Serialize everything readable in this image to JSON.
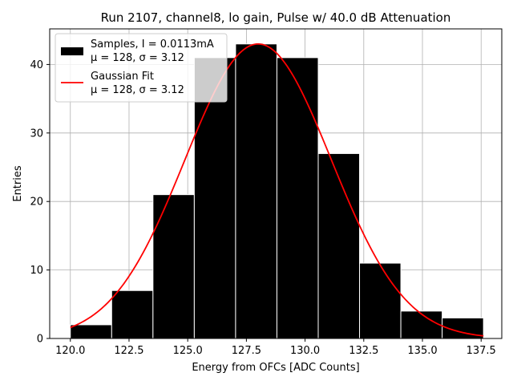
{
  "chart_data": {
    "type": "bar",
    "title": "Run 2107, channel8, lo gain, Pulse w/ 40.0 dB Attenuation",
    "xlabel": "Energy from OFCs [ADC Counts]",
    "ylabel": "Entries",
    "xlim": [
      119.12,
      138.38
    ],
    "ylim": [
      0,
      45.2
    ],
    "grid": true,
    "legend_placement": "top-left",
    "xticks": [
      120.0,
      122.5,
      125.0,
      127.5,
      130.0,
      132.5,
      135.0,
      137.5
    ],
    "xtick_labels": [
      "120.0",
      "122.5",
      "125.0",
      "127.5",
      "130.0",
      "132.5",
      "135.0",
      "137.5"
    ],
    "yticks": [
      0,
      10,
      20,
      30,
      40
    ],
    "ytick_labels": [
      "0",
      "10",
      "20",
      "30",
      "40"
    ],
    "histogram": {
      "name": "Samples, I = 0.0113mA",
      "stats_line": "μ = 128, σ = 3.12",
      "color": "#000000",
      "edge_color": "#ffffff",
      "bin_edges": [
        120.0,
        121.76,
        123.52,
        125.28,
        127.04,
        128.8,
        130.56,
        132.32,
        134.08,
        135.84,
        137.6
      ],
      "counts": [
        2,
        7,
        21,
        41,
        43,
        41,
        27,
        11,
        4,
        3
      ]
    },
    "fit": {
      "name": "Gaussian Fit",
      "stats_line": "μ = 128, σ = 3.12",
      "color": "#ff0000",
      "mu": 128.0,
      "sigma": 3.12,
      "amplitude": 43.0,
      "x_range": [
        120.0,
        137.6
      ]
    }
  }
}
